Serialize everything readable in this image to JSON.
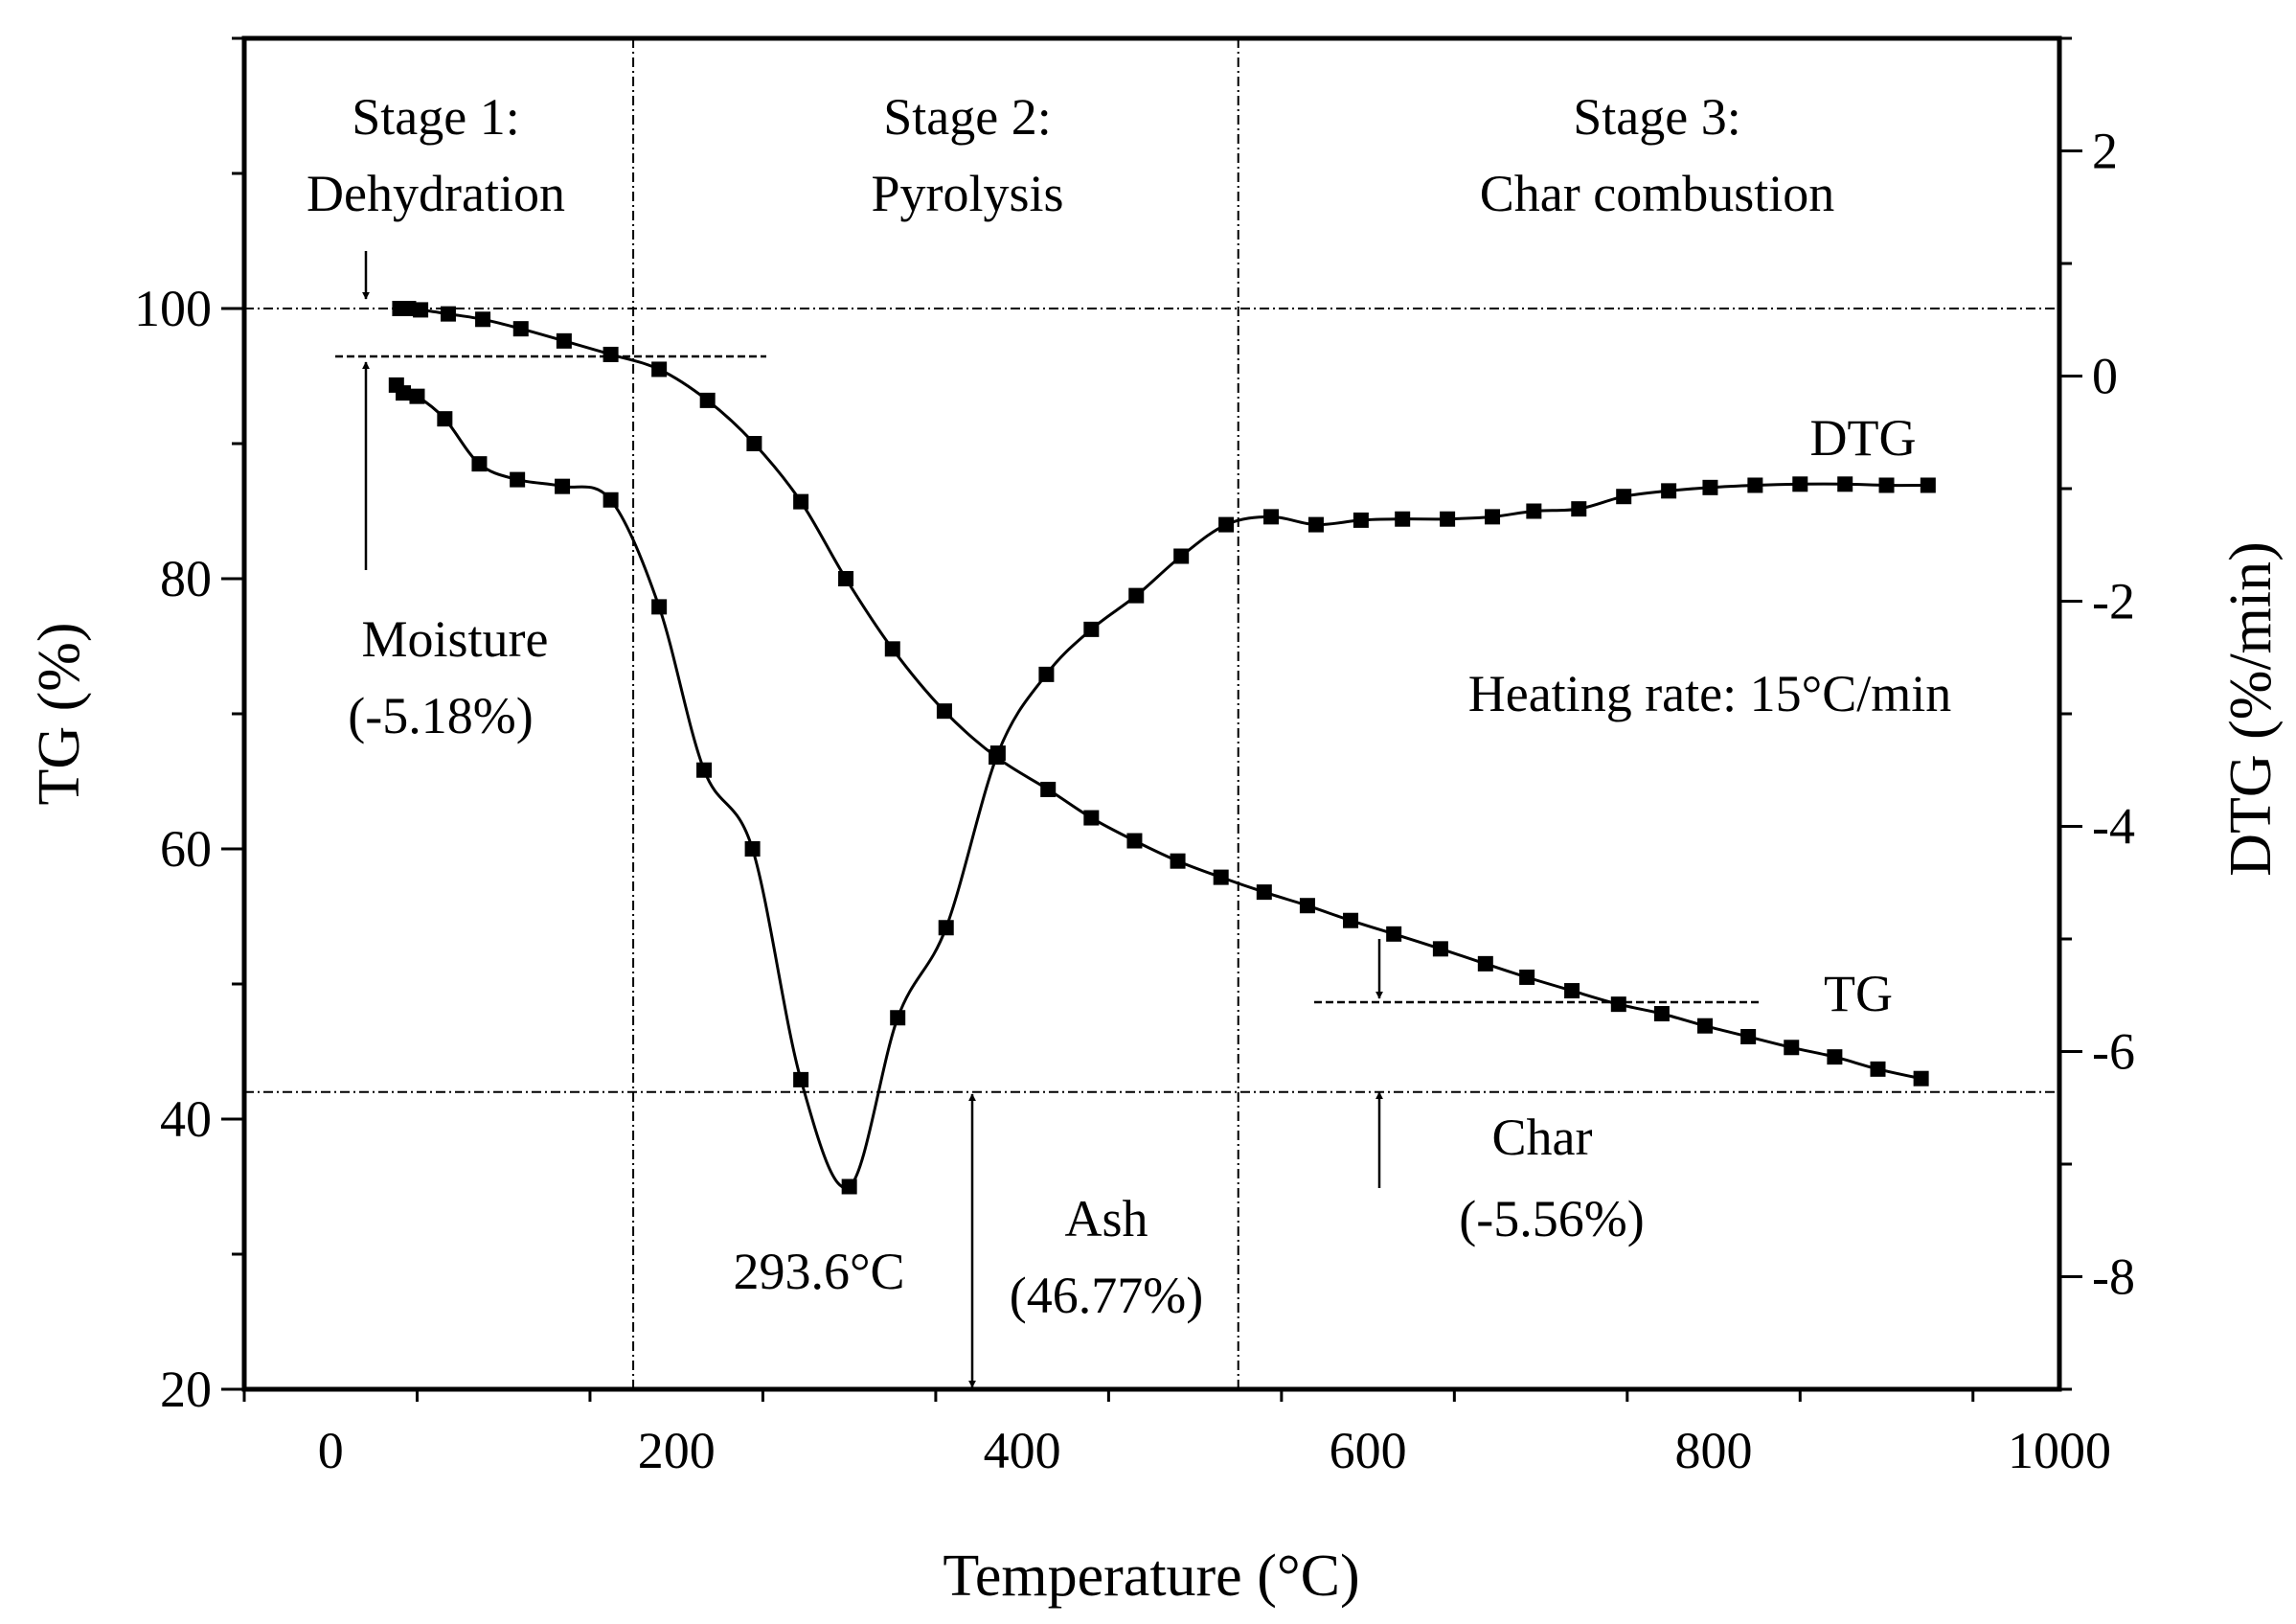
{
  "chart_data": {
    "type": "line",
    "x_axis": {
      "label": "Temperature (°C)",
      "range": [
        -50,
        1000
      ],
      "ticks": [
        0,
        200,
        400,
        600,
        800,
        1000
      ]
    },
    "y_left": {
      "label": "TG (%)",
      "range": [
        20,
        120
      ],
      "ticks": [
        20,
        40,
        60,
        80,
        100
      ]
    },
    "y_right": {
      "label": "DTG (%/min)",
      "range": [
        -9,
        3
      ],
      "ticks": [
        -8,
        -6,
        -4,
        -2,
        0,
        2
      ]
    },
    "series": [
      {
        "name": "TG",
        "axis": "left",
        "marker": "square",
        "x": [
          40,
          45,
          52,
          68,
          88,
          110,
          135,
          162,
          190,
          218,
          245,
          272,
          298,
          325,
          355,
          385,
          415,
          440,
          465,
          490,
          515,
          540,
          565,
          590,
          615,
          642,
          668,
          692,
          718,
          745,
          770,
          795,
          820,
          845,
          870,
          895,
          920
        ],
        "values": [
          100,
          100,
          99.9,
          99.6,
          99.2,
          98.5,
          97.6,
          96.6,
          95.5,
          93.2,
          90,
          85.7,
          80,
          74.8,
          70.2,
          66.8,
          64.4,
          62.3,
          60.6,
          59.1,
          57.9,
          56.8,
          55.8,
          54.7,
          53.7,
          52.6,
          51.5,
          50.5,
          49.5,
          48.5,
          47.8,
          46.9,
          46.1,
          45.3,
          44.6,
          43.7,
          43
        ]
      },
      {
        "name": "DTG",
        "axis": "right",
        "marker": "square",
        "x": [
          38,
          42,
          50,
          66,
          86,
          108,
          134,
          162,
          190,
          216,
          244,
          272,
          300,
          328,
          356,
          386,
          414,
          440,
          466,
          492,
          518,
          544,
          570,
          596,
          620,
          646,
          672,
          696,
          722,
          748,
          774,
          798,
          824,
          850,
          876,
          900,
          924
        ],
        "values": [
          -0.08,
          -0.15,
          -0.18,
          -0.38,
          -0.78,
          -0.92,
          -0.98,
          -1.1,
          -2.05,
          -3.5,
          -4.2,
          -6.25,
          -7.2,
          -5.7,
          -4.9,
          -3.35,
          -2.65,
          -2.25,
          -1.95,
          -1.6,
          -1.32,
          -1.25,
          -1.32,
          -1.28,
          -1.27,
          -1.27,
          -1.25,
          -1.2,
          -1.18,
          -1.07,
          -1.02,
          -0.99,
          -0.97,
          -0.96,
          -0.96,
          -0.97,
          -0.97
        ]
      }
    ],
    "series_labels": [
      "DTG",
      "TG"
    ],
    "stages": [
      {
        "line1": "Stage 1:",
        "line2": "Dehydration"
      },
      {
        "line1": "Stage 2:",
        "line2": "Pyrolysis"
      },
      {
        "line1": "Stage 3:",
        "line2": "Char combustion"
      }
    ],
    "stage_boundaries": [
      175,
      525
    ],
    "reference_lines_tg": [
      100,
      42
    ],
    "annotations": {
      "moisture": {
        "line1": "Moisture",
        "line2": "(-5.18%)"
      },
      "peak": "293.6°C",
      "ash": {
        "line1": "Ash",
        "line2": "(46.77%)"
      },
      "char": {
        "line1": "Char",
        "line2": "(-5.56%)"
      },
      "heating_rate": "Heating rate: 15°C/min"
    },
    "grid": false
  }
}
